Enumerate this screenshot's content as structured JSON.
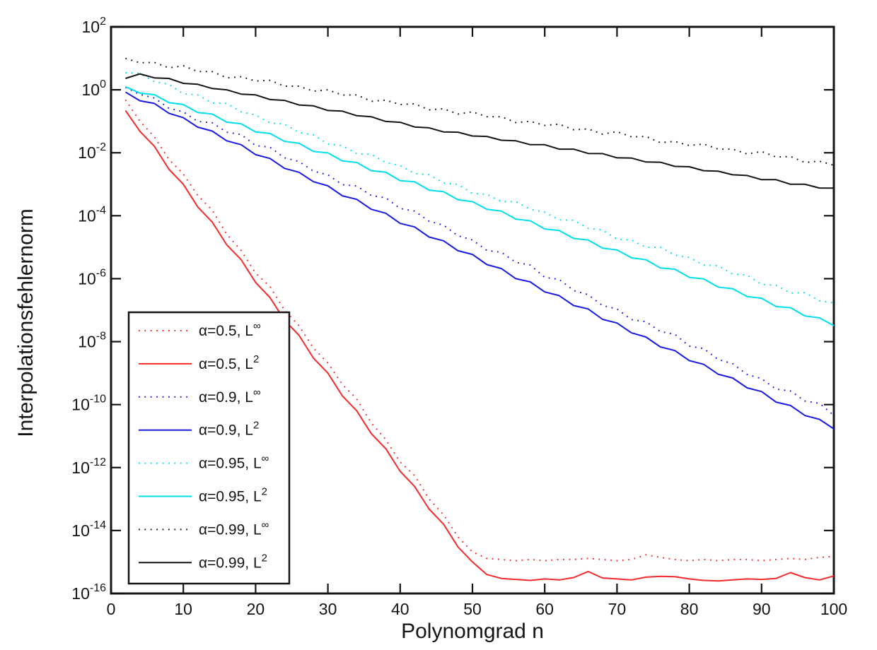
{
  "figure": {
    "background": "#ffffff",
    "axis_color": "#141414"
  },
  "chart_data": {
    "type": "line",
    "title": "",
    "xlabel": "Polynomgrad n",
    "ylabel": "Interpolationsfehlernorm",
    "grid": false,
    "legend_position": "lower-left",
    "x_axis": {
      "min": 0,
      "max": 100,
      "ticks": [
        0,
        10,
        20,
        30,
        40,
        50,
        60,
        70,
        80,
        90,
        100
      ]
    },
    "y_axis": {
      "scale": "log",
      "base_text": "10",
      "min_exp": -16,
      "max_exp": 2,
      "tick_exponents": [
        2,
        0,
        -2,
        -4,
        -6,
        -8,
        -10,
        -12,
        -14,
        -16
      ]
    },
    "x": [
      2,
      4,
      6,
      8,
      10,
      12,
      14,
      16,
      18,
      20,
      22,
      24,
      26,
      28,
      30,
      32,
      34,
      36,
      38,
      40,
      42,
      44,
      46,
      48,
      50,
      52,
      54,
      56,
      58,
      60,
      62,
      64,
      66,
      68,
      70,
      72,
      74,
      76,
      78,
      80,
      82,
      84,
      86,
      88,
      90,
      92,
      94,
      96,
      98,
      100
    ],
    "series": [
      {
        "label": "α=0.5, L^∞",
        "label_base": "α=0.5, L",
        "label_sup": "∞",
        "color": "#f52a2a",
        "style": "dotted",
        "y": [
          0.48,
          0.1,
          0.032,
          0.0062,
          0.0021,
          0.00044,
          0.00015,
          2.6e-05,
          7.8e-06,
          1.5e-06,
          5.6e-07,
          1e-07,
          3.2e-08,
          6.2e-09,
          2.1e-09,
          4.4e-10,
          1.5e-10,
          2.6e-11,
          7.8e-12,
          1.5e-12,
          5.6e-13,
          1e-13,
          3.2e-14,
          6.2e-15,
          2.1e-15,
          1.3e-15,
          1.2e-15,
          1.1e-15,
          1.2e-15,
          1.1e-15,
          1.2e-15,
          1.2e-15,
          1.3e-15,
          1.2e-15,
          1.1e-15,
          1.2e-15,
          1.7e-15,
          1.4e-15,
          1.2e-15,
          1.1e-15,
          1.2e-15,
          1.1e-15,
          1.2e-15,
          1.2e-15,
          1.1e-15,
          1.2e-15,
          1.3e-15,
          1.2e-15,
          1.4e-15,
          1.5e-15
        ]
      },
      {
        "label": "α=0.5, L^2",
        "label_base": "α=0.5, L",
        "label_sup": "2",
        "color": "#f52a2a",
        "style": "solid",
        "y": [
          0.22,
          0.048,
          0.016,
          0.003,
          0.001,
          0.00019,
          6.3e-05,
          1.2e-05,
          4e-06,
          7.6e-07,
          2.5e-07,
          4.8e-08,
          1.6e-08,
          3e-09,
          1e-09,
          1.9e-10,
          6.3e-11,
          1.2e-11,
          4e-12,
          7.6e-13,
          2.5e-13,
          4.8e-14,
          1.6e-14,
          3e-15,
          1e-15,
          4e-16,
          3e-16,
          2.8e-16,
          2.6e-16,
          2.9e-16,
          2.7e-16,
          3.2e-16,
          5e-16,
          3.1e-16,
          2.9e-16,
          2.7e-16,
          3.3e-16,
          3.5e-16,
          3.4e-16,
          2.9e-16,
          2.6e-16,
          2.5e-16,
          2.7e-16,
          2.9e-16,
          2.8e-16,
          3e-16,
          4.6e-16,
          3.2e-16,
          2.7e-16,
          3.6e-16
        ]
      },
      {
        "label": "α=0.9, L^∞",
        "label_base": "α=0.9, L",
        "label_sup": "∞",
        "color": "#1a1ae6",
        "style": "dotted",
        "y": [
          1.2,
          0.71,
          0.55,
          0.26,
          0.2,
          0.099,
          0.09,
          0.045,
          0.038,
          0.017,
          0.015,
          0.0069,
          0.0053,
          0.0026,
          0.002,
          0.00097,
          0.00088,
          0.00044,
          0.00037,
          0.00017,
          0.00014,
          6.7e-05,
          5e-05,
          2.3e-05,
          1.7e-05,
          7.9e-06,
          6.9e-06,
          3.3e-06,
          2.7e-06,
          1.1e-06,
          9.5e-07,
          4.2e-07,
          3.1e-07,
          1.4e-07,
          1.1e-07,
          5e-08,
          4.3e-08,
          2.1e-08,
          1.7e-08,
          7.2e-09,
          6e-09,
          2.7e-09,
          2e-09,
          9e-10,
          6.7e-10,
          3.1e-10,
          2.7e-10,
          1.3e-10,
          1.1e-10,
          4.5e-11
        ]
      },
      {
        "label": "α=0.9, L^2",
        "label_base": "α=0.9, L",
        "label_sup": "2",
        "color": "#1a1ae6",
        "style": "solid",
        "y": [
          0.85,
          0.45,
          0.37,
          0.18,
          0.13,
          0.065,
          0.049,
          0.024,
          0.018,
          0.0087,
          0.0066,
          0.0032,
          0.0024,
          0.0012,
          0.00089,
          0.00043,
          0.00033,
          0.00016,
          0.00012,
          5.7e-05,
          4.4e-05,
          2.1e-05,
          1.6e-05,
          7.7e-06,
          5.9e-06,
          2.8e-06,
          2.1e-06,
          1e-06,
          7.9e-07,
          3.8e-07,
          2.9e-07,
          1.4e-07,
          1.1e-07,
          5.1e-08,
          3.9e-08,
          1.9e-08,
          1.4e-08,
          6.8e-09,
          5.2e-09,
          2.5e-09,
          1.9e-09,
          9.2e-10,
          7e-10,
          3.4e-10,
          2.6e-10,
          1.2e-10,
          9.4e-11,
          4.5e-11,
          3.4e-11,
          1.7e-11
        ]
      },
      {
        "label": "α=0.95, L^∞",
        "label_base": "α=0.95, L",
        "label_sup": "∞",
        "color": "#00dff0",
        "style": "dotted",
        "y": [
          3.5,
          3.3,
          1.8,
          1.5,
          0.75,
          0.69,
          0.38,
          0.37,
          0.2,
          0.16,
          0.088,
          0.081,
          0.044,
          0.037,
          0.019,
          0.017,
          0.0093,
          0.009,
          0.0049,
          0.0039,
          0.0022,
          0.002,
          0.0011,
          0.00099,
          0.00051,
          0.00048,
          0.00028,
          0.00028,
          0.00016,
          0.00013,
          7.4e-05,
          7.2e-05,
          4e-05,
          3.5e-05,
          1.8e-05,
          1.7e-05,
          9.9e-06,
          1e-05,
          5.6e-06,
          4.7e-06,
          2.7e-06,
          2.6e-06,
          1.4e-06,
          1.3e-06,
          6.6e-07,
          6.2e-07,
          3.5e-07,
          3.6e-07,
          2e-07,
          1.7e-07
        ]
      },
      {
        "label": "α=0.95, L^2",
        "label_base": "α=0.95, L",
        "label_sup": "2",
        "color": "#00dff0",
        "style": "solid",
        "y": [
          1.25,
          0.79,
          0.7,
          0.39,
          0.34,
          0.19,
          0.17,
          0.094,
          0.083,
          0.046,
          0.041,
          0.023,
          0.02,
          0.011,
          0.0099,
          0.0055,
          0.0049,
          0.0027,
          0.0024,
          0.0013,
          0.0012,
          0.00065,
          0.00058,
          0.00032,
          0.00028,
          0.00016,
          0.00014,
          7.8e-05,
          6.9e-05,
          3.8e-05,
          3.4e-05,
          1.9e-05,
          1.7e-05,
          9.3e-06,
          8.2e-06,
          4.6e-06,
          4e-06,
          2.2e-06,
          2e-06,
          1.1e-06,
          9.8e-07,
          5.4e-07,
          4.8e-07,
          2.7e-07,
          2.4e-07,
          1.3e-07,
          1.2e-07,
          6.5e-08,
          5.7e-08,
          3.2e-08
        ]
      },
      {
        "label": "α=0.99, L^∞",
        "label_base": "α=0.99, L",
        "label_sup": "∞",
        "color": "#141414",
        "style": "dotted",
        "y": [
          10.0,
          7.2,
          7.4,
          5.0,
          5.8,
          3.8,
          3.8,
          2.4,
          2.6,
          1.9,
          2.0,
          1.3,
          1.3,
          0.9,
          1.0,
          0.68,
          0.69,
          0.43,
          0.47,
          0.34,
          0.36,
          0.23,
          0.25,
          0.17,
          0.2,
          0.14,
          0.14,
          0.091,
          0.1,
          0.074,
          0.081,
          0.054,
          0.057,
          0.039,
          0.047,
          0.032,
          0.033,
          0.021,
          0.023,
          0.017,
          0.019,
          0.013,
          0.013,
          0.0091,
          0.011,
          0.0073,
          0.0076,
          0.0049,
          0.0054,
          0.004
        ]
      },
      {
        "label": "α=0.99, L^2",
        "label_base": "α=0.99, L",
        "label_sup": "2",
        "color": "#141414",
        "style": "solid",
        "y": [
          2.3,
          3.2,
          2.4,
          2.3,
          1.6,
          1.5,
          1.1,
          1.0,
          0.73,
          0.69,
          0.49,
          0.46,
          0.33,
          0.31,
          0.22,
          0.21,
          0.15,
          0.14,
          0.099,
          0.093,
          0.066,
          0.062,
          0.046,
          0.045,
          0.034,
          0.033,
          0.025,
          0.024,
          0.018,
          0.018,
          0.013,
          0.013,
          0.0095,
          0.0094,
          0.0069,
          0.0068,
          0.0051,
          0.005,
          0.0037,
          0.0036,
          0.0027,
          0.0026,
          0.002,
          0.0019,
          0.0014,
          0.0014,
          0.001,
          0.001,
          0.00076,
          0.00075
        ]
      }
    ]
  }
}
